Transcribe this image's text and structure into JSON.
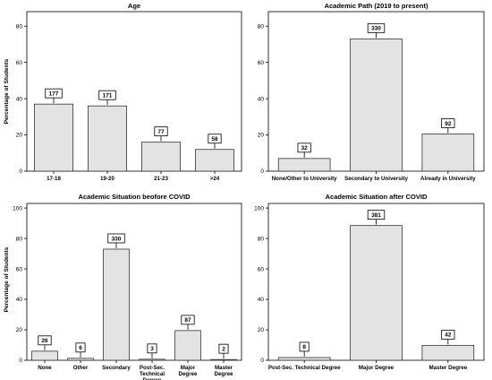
{
  "chart_data": [
    {
      "type": "bar",
      "title": "Age",
      "ylabel": "Percentage of Students",
      "xlabel": "",
      "ylim": [
        0,
        88
      ],
      "yticks": [
        0,
        20,
        40,
        60,
        80
      ],
      "categories": [
        "17-18",
        "19-20",
        "21-23",
        ">24"
      ],
      "values": [
        37,
        36,
        16,
        12
      ],
      "labels": [
        "177",
        "171",
        "77",
        "58"
      ],
      "grid": false,
      "colors": {
        "bar": "#e3e3e3",
        "edge": "#333333"
      }
    },
    {
      "type": "bar",
      "title": "Academic Path (2019 to present)",
      "ylabel": "",
      "xlabel": "",
      "ylim": [
        0,
        88
      ],
      "yticks": [
        0,
        20,
        40,
        60,
        80
      ],
      "categories": [
        "None/Other to University",
        "Secondary to University",
        "Already in University"
      ],
      "values": [
        7,
        73,
        20.5
      ],
      "labels": [
        "32",
        "330",
        "92"
      ],
      "grid": false,
      "colors": {
        "bar": "#e3e3e3",
        "edge": "#333333"
      }
    },
    {
      "type": "bar",
      "title": "Academic Situation beofore COVID",
      "ylabel": "Percentage of Students",
      "xlabel": "",
      "ylim": [
        0,
        103
      ],
      "yticks": [
        0,
        20,
        40,
        60,
        80,
        100
      ],
      "categories": [
        "None",
        "Other",
        "Secondary",
        "Post-Sec. Technical Degree",
        "Major Degree",
        "Master Degree"
      ],
      "values": [
        6,
        1.3,
        73,
        0.7,
        19.5,
        0.5
      ],
      "labels": [
        "26",
        "6",
        "330",
        "3",
        "87",
        "2"
      ],
      "grid": false,
      "colors": {
        "bar": "#e3e3e3",
        "edge": "#333333"
      }
    },
    {
      "type": "bar",
      "title": "Academic Situation after COVID",
      "ylabel": "",
      "xlabel": "",
      "ylim": [
        0,
        103
      ],
      "yticks": [
        0,
        20,
        40,
        60,
        80,
        100
      ],
      "categories": [
        "Post-Sec. Technical Degree",
        "Major Degree",
        "Master Degree"
      ],
      "values": [
        1.8,
        88.5,
        9.8
      ],
      "labels": [
        "8",
        "381",
        "42"
      ],
      "grid": false,
      "colors": {
        "bar": "#e3e3e3",
        "edge": "#333333"
      }
    }
  ]
}
